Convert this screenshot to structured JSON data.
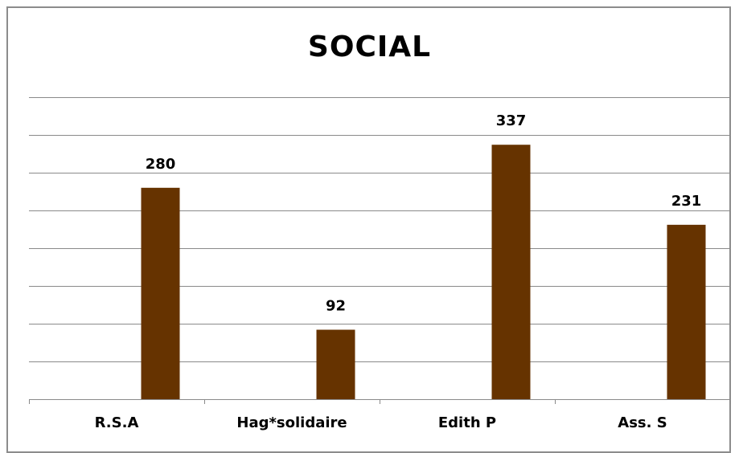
{
  "chart_data": {
    "type": "bar",
    "title": "SOCIAL",
    "categories": [
      "R.S.A",
      "Hag*solidaire",
      "Edith P",
      "Ass. S"
    ],
    "values": [
      280,
      92,
      337,
      231
    ],
    "xlabel": "",
    "ylabel": "",
    "ylim": [
      0,
      400
    ],
    "grid": true,
    "legend": "none",
    "bar_color": "#663300",
    "gridline_color": "#8a8a8a"
  }
}
